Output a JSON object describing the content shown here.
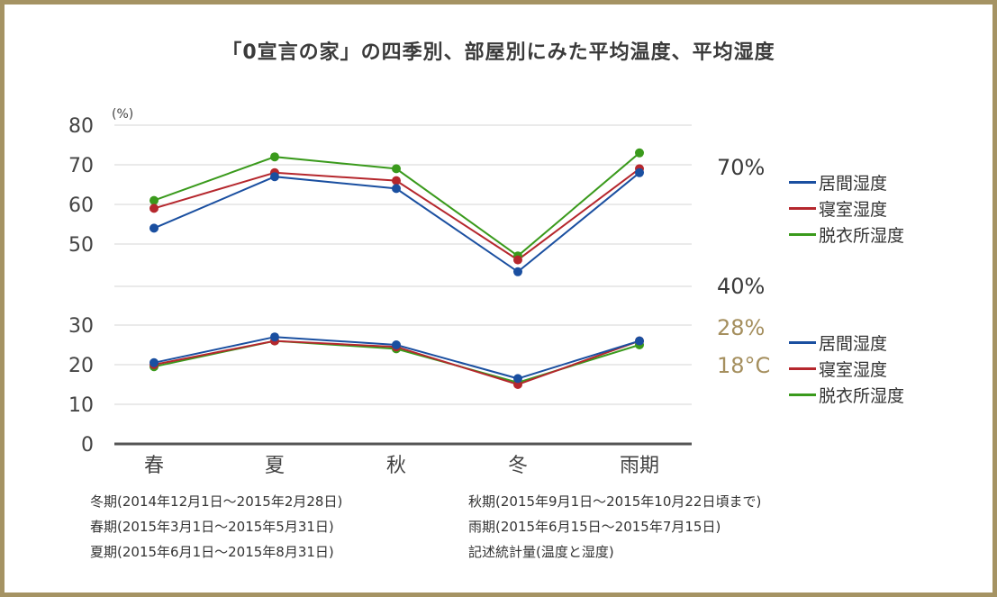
{
  "title": "「0宣言の家」の四季別、部屋別にみた平均温度、平均湿度",
  "unit_label": "(%)",
  "ref_labels": [
    {
      "text": "70%",
      "style": "dark"
    },
    {
      "text": "40%",
      "style": "dark"
    },
    {
      "text": "28%",
      "style": "gold"
    },
    {
      "text": "18°C",
      "style": "gold"
    }
  ],
  "legend_upper": [
    {
      "label": "居間湿度",
      "color": "#1a4fa0"
    },
    {
      "label": "寝室湿度",
      "color": "#b5272d"
    },
    {
      "label": "脱衣所湿度",
      "color": "#3a9a1c"
    }
  ],
  "legend_lower": [
    {
      "label": "居間湿度",
      "color": "#1a4fa0"
    },
    {
      "label": "寝室湿度",
      "color": "#b5272d"
    },
    {
      "label": "脱衣所湿度",
      "color": "#3a9a1c"
    }
  ],
  "notes": [
    "冬期(2014年12月1日～2015年2月28日)",
    "秋期(2015年9月1日～2015年10月22日頃まで)",
    "春期(2015年3月1日～2015年5月31日)",
    "雨期(2015年6月15日～2015年7月15日)",
    "夏期(2015年6月1日～2015年8月31日)",
    "記述統計量(温度と湿度)"
  ],
  "chart_data": {
    "type": "line",
    "categories": [
      "春",
      "夏",
      "秋",
      "冬",
      "雨期"
    ],
    "y_ticks": [
      "0",
      "10",
      "20",
      "30",
      "50",
      "60",
      "70",
      "80"
    ],
    "axis_break": "y axis jumps from 30 to 50",
    "grid": true,
    "upper_series": [
      {
        "values": [
          54,
          67,
          64,
          43,
          68
        ],
        "color": "#1a4fa0"
      },
      {
        "values": [
          59,
          68,
          66,
          46,
          69
        ],
        "color": "#b5272d"
      },
      {
        "values": [
          61,
          72,
          69,
          47,
          73
        ],
        "color": "#3a9a1c"
      }
    ],
    "lower_series": [
      {
        "values": [
          20.5,
          27,
          25,
          16.5,
          26
        ],
        "color": "#1a4fa0"
      },
      {
        "values": [
          20,
          26,
          24.5,
          15,
          26
        ],
        "color": "#b5272d"
      },
      {
        "values": [
          19.5,
          26,
          24,
          15.5,
          25
        ],
        "color": "#3a9a1c"
      }
    ]
  }
}
